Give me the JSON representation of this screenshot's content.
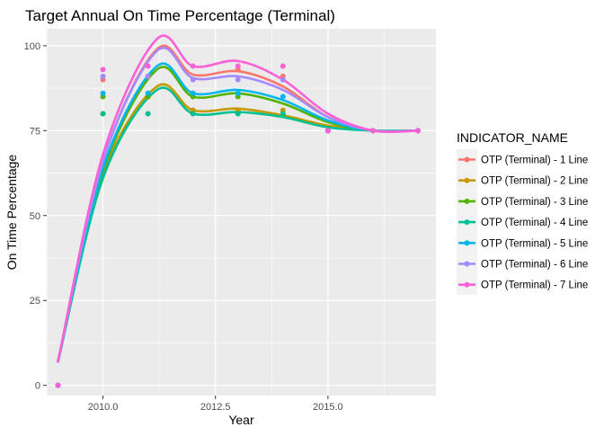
{
  "chart_data": {
    "type": "scatter",
    "title": "Target Annual On Time Percentage (Terminal)",
    "xlabel": "Year",
    "ylabel": "On Time Percentage",
    "xlim": [
      2008.75,
      2017.4
    ],
    "ylim": [
      -3,
      105
    ],
    "x_ticks": [
      2010.0,
      2012.5,
      2015.0
    ],
    "x_tick_labels": [
      "2010.0",
      "2012.5",
      "2015.0"
    ],
    "y_ticks": [
      0,
      25,
      50,
      75,
      100
    ],
    "y_tick_labels": [
      "0",
      "25",
      "50",
      "75",
      "100"
    ],
    "grid": true,
    "legend": {
      "title": "INDICATOR_NAME",
      "position": "right"
    },
    "series": [
      {
        "name": "OTP (Terminal) - 1 Line",
        "color": "#F8766D",
        "points": [
          [
            2009,
            0
          ],
          [
            2010,
            90
          ],
          [
            2011,
            91
          ],
          [
            2012,
            86
          ],
          [
            2013,
            93
          ],
          [
            2014,
            91
          ],
          [
            2015,
            75
          ],
          [
            2016,
            75
          ],
          [
            2017,
            75
          ]
        ],
        "fit": [
          [
            2009,
            7
          ],
          [
            2010,
            66
          ],
          [
            2011.2,
            99
          ],
          [
            2012,
            91.5
          ],
          [
            2013,
            92.5
          ],
          [
            2014,
            88
          ],
          [
            2015,
            79
          ],
          [
            2016,
            75
          ],
          [
            2017,
            75
          ]
        ]
      },
      {
        "name": "OTP (Terminal) - 2 Line",
        "color": "#C49A00",
        "points": [
          [
            2009,
            0
          ],
          [
            2010,
            80
          ],
          [
            2011,
            85
          ],
          [
            2012,
            81
          ],
          [
            2013,
            81
          ],
          [
            2014,
            81
          ],
          [
            2015,
            75
          ],
          [
            2016,
            75
          ],
          [
            2017,
            75
          ]
        ],
        "fit": [
          [
            2009,
            7
          ],
          [
            2010,
            62
          ],
          [
            2011.2,
            88
          ],
          [
            2012,
            81
          ],
          [
            2013,
            81.5
          ],
          [
            2014,
            79.5
          ],
          [
            2015,
            76.5
          ],
          [
            2016,
            75
          ],
          [
            2017,
            75
          ]
        ]
      },
      {
        "name": "OTP (Terminal) - 3 Line",
        "color": "#53B400",
        "points": [
          [
            2009,
            0
          ],
          [
            2010,
            85
          ],
          [
            2011,
            85
          ],
          [
            2012,
            85
          ],
          [
            2013,
            85
          ],
          [
            2014,
            80
          ],
          [
            2015,
            75
          ],
          [
            2016,
            75
          ],
          [
            2017,
            75
          ]
        ],
        "fit": [
          [
            2009,
            7
          ],
          [
            2010,
            63
          ],
          [
            2011.2,
            93
          ],
          [
            2012,
            85
          ],
          [
            2013,
            86
          ],
          [
            2014,
            83
          ],
          [
            2015,
            77.5
          ],
          [
            2016,
            75
          ],
          [
            2017,
            75
          ]
        ]
      },
      {
        "name": "OTP (Terminal) - 4 Line",
        "color": "#00C094",
        "points": [
          [
            2009,
            0
          ],
          [
            2010,
            80
          ],
          [
            2011,
            80
          ],
          [
            2012,
            80
          ],
          [
            2013,
            80
          ],
          [
            2014,
            80
          ],
          [
            2015,
            75
          ],
          [
            2016,
            75
          ],
          [
            2017,
            75
          ]
        ],
        "fit": [
          [
            2009,
            7
          ],
          [
            2010,
            61
          ],
          [
            2011.2,
            87
          ],
          [
            2012,
            80
          ],
          [
            2013,
            80.5
          ],
          [
            2014,
            79
          ],
          [
            2015,
            76
          ],
          [
            2016,
            75
          ],
          [
            2017,
            75
          ]
        ]
      },
      {
        "name": "OTP (Terminal) - 5 Line",
        "color": "#00B6EB",
        "points": [
          [
            2009,
            0
          ],
          [
            2010,
            86
          ],
          [
            2011,
            86
          ],
          [
            2012,
            86
          ],
          [
            2013,
            86
          ],
          [
            2014,
            85
          ],
          [
            2015,
            75
          ],
          [
            2016,
            75
          ],
          [
            2017,
            75
          ]
        ],
        "fit": [
          [
            2009,
            7
          ],
          [
            2010,
            64
          ],
          [
            2011.2,
            94
          ],
          [
            2012,
            86
          ],
          [
            2013,
            87
          ],
          [
            2014,
            84
          ],
          [
            2015,
            78
          ],
          [
            2016,
            75
          ],
          [
            2017,
            75
          ]
        ]
      },
      {
        "name": "OTP (Terminal) - 6 Line",
        "color": "#A58AFF",
        "points": [
          [
            2009,
            0
          ],
          [
            2010,
            91
          ],
          [
            2011,
            91
          ],
          [
            2012,
            90
          ],
          [
            2013,
            90
          ],
          [
            2014,
            90
          ],
          [
            2015,
            75
          ],
          [
            2016,
            75
          ],
          [
            2017,
            75
          ]
        ],
        "fit": [
          [
            2009,
            7
          ],
          [
            2010,
            66
          ],
          [
            2011.2,
            98.5
          ],
          [
            2012,
            90.5
          ],
          [
            2013,
            91
          ],
          [
            2014,
            87
          ],
          [
            2015,
            79
          ],
          [
            2016,
            75
          ],
          [
            2017,
            75
          ]
        ]
      },
      {
        "name": "OTP (Terminal) - 7 Line",
        "color": "#FB61D7",
        "points": [
          [
            2009,
            0
          ],
          [
            2010,
            93
          ],
          [
            2011,
            94
          ],
          [
            2012,
            94
          ],
          [
            2013,
            94
          ],
          [
            2014,
            94
          ],
          [
            2015,
            75
          ],
          [
            2016,
            75
          ],
          [
            2017,
            75
          ]
        ],
        "fit": [
          [
            2009,
            7
          ],
          [
            2010,
            68
          ],
          [
            2011.2,
            102
          ],
          [
            2012,
            94
          ],
          [
            2013,
            95.5
          ],
          [
            2014,
            90
          ],
          [
            2015,
            80
          ],
          [
            2016,
            75
          ],
          [
            2017,
            75
          ]
        ]
      }
    ]
  }
}
